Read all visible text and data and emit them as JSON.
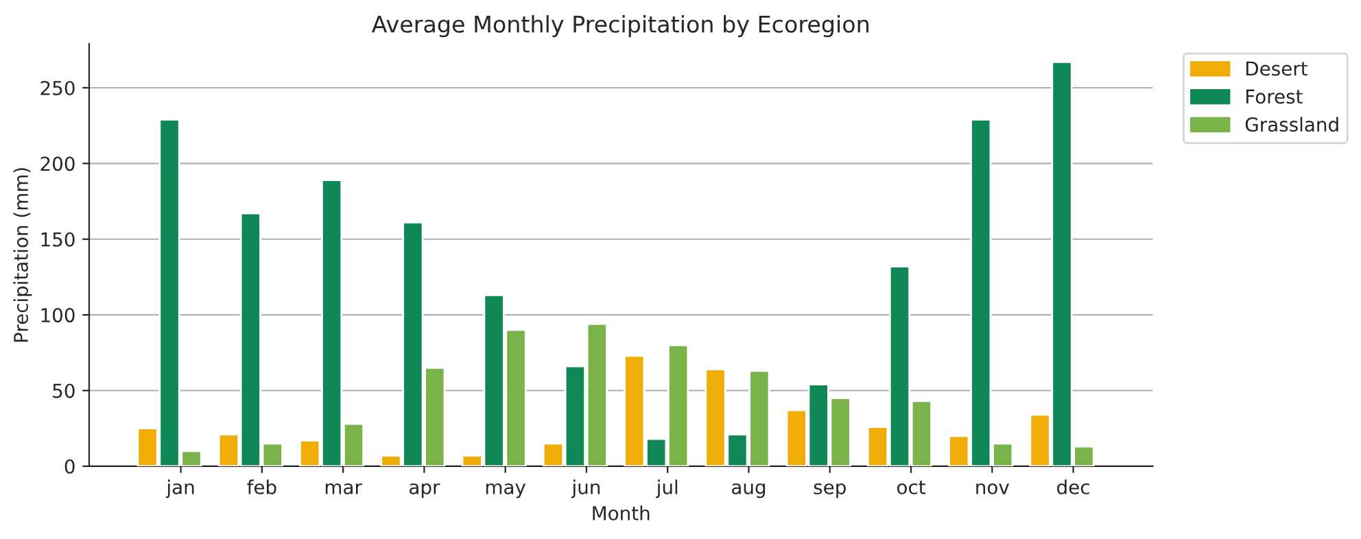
{
  "chart_data": {
    "type": "bar",
    "title": "Average Monthly Precipitation by Ecoregion",
    "xlabel": "Month",
    "ylabel": "Precipitation (mm)",
    "categories": [
      "jan",
      "feb",
      "mar",
      "apr",
      "may",
      "jun",
      "jul",
      "aug",
      "sep",
      "oct",
      "nov",
      "dec"
    ],
    "series": [
      {
        "name": "Desert",
        "color": "#f0ad08",
        "values": [
          25,
          21,
          17,
          7,
          7,
          15,
          73,
          64,
          37,
          26,
          20,
          34
        ]
      },
      {
        "name": "Forest",
        "color": "#0f8756",
        "values": [
          229,
          167,
          189,
          161,
          113,
          66,
          18,
          21,
          54,
          132,
          229,
          267
        ]
      },
      {
        "name": "Grassland",
        "color": "#79b34a",
        "values": [
          10,
          15,
          28,
          65,
          90,
          94,
          80,
          63,
          45,
          43,
          15,
          13
        ]
      }
    ],
    "ylim": [
      0,
      279
    ],
    "yticks": [
      0,
      50,
      100,
      150,
      200,
      250
    ],
    "grid": "y",
    "legend": "top right"
  }
}
